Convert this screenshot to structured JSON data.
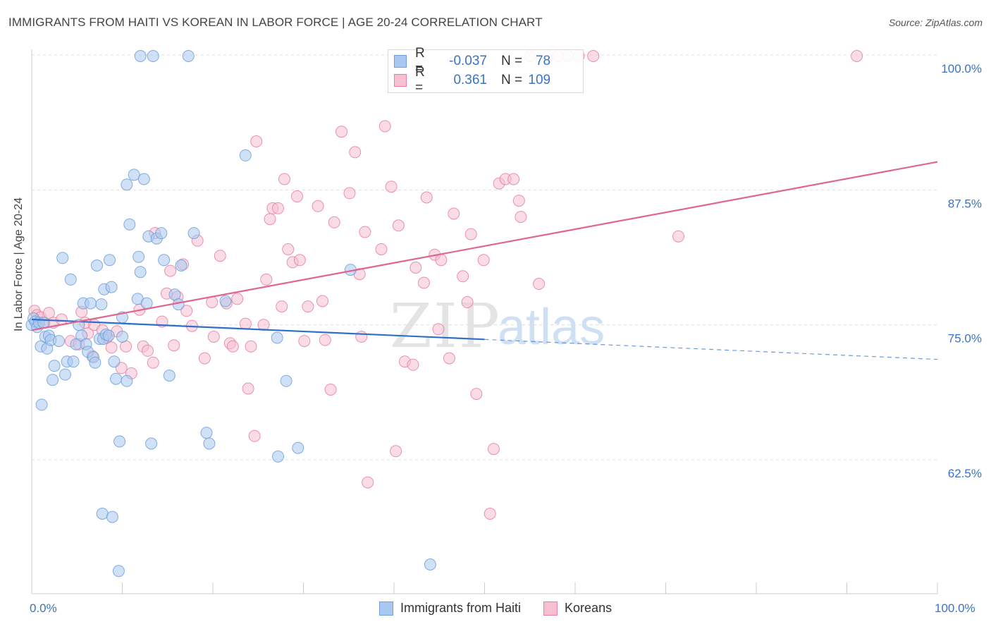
{
  "title": "IMMIGRANTS FROM HAITI VS KOREAN IN LABOR FORCE | AGE 20-24 CORRELATION CHART",
  "source": "Source: ZipAtlas.com",
  "watermark": {
    "zip": "ZIP",
    "atlas": "atlas"
  },
  "legend": [
    {
      "r_label": "R =",
      "r_value": "-0.037",
      "n_label": "N =",
      "n_value": "78"
    },
    {
      "r_label": "R =",
      "r_value": "0.361",
      "n_label": "N =",
      "n_value": "109"
    }
  ],
  "colors": {
    "haiti": "#6f9fdc",
    "haiti_fill": "#a9c8ef",
    "korean": "#e87fa3",
    "korean_fill": "#f6bfd2",
    "trend_haiti": "#2f6fcc",
    "trend_korean": "#e0668f",
    "tick_text": "#3b73c4"
  },
  "chart_data": {
    "type": "scatter",
    "title": "IMMIGRANTS FROM HAITI VS KOREAN IN LABOR FORCE | AGE 20-24 CORRELATION CHART",
    "xlabel": "",
    "ylabel": "In Labor Force | Age 20-24",
    "xlim": [
      0,
      100
    ],
    "ylim": [
      51.5,
      102
    ],
    "x_tick_labels": [
      "0.0%",
      "100.0%"
    ],
    "y_ticks": [
      62.5,
      75.0,
      87.5,
      100.0
    ],
    "y_tick_labels": [
      "62.5%",
      "75.0%",
      "87.5%",
      "100.0%"
    ],
    "grid": true,
    "series": [
      {
        "name": "Immigrants from Haiti",
        "color": "#6f9fdc",
        "trend": {
          "x": [
            0,
            100
          ],
          "y": [
            75.5,
            71.8
          ],
          "solid_until_x": 50
        },
        "points": [
          [
            0.0,
            75.0
          ],
          [
            0.2,
            75.6
          ],
          [
            0.4,
            75.3
          ],
          [
            0.6,
            74.8
          ],
          [
            0.8,
            75.2
          ],
          [
            1.0,
            73.0
          ],
          [
            1.1,
            67.6
          ],
          [
            1.3,
            75.2
          ],
          [
            1.5,
            73.9
          ],
          [
            1.7,
            72.8
          ],
          [
            1.9,
            74.0
          ],
          [
            2.1,
            73.6
          ],
          [
            2.3,
            69.9
          ],
          [
            2.5,
            71.2
          ],
          [
            3.0,
            73.5
          ],
          [
            3.4,
            81.2
          ],
          [
            3.7,
            70.4
          ],
          [
            3.9,
            71.6
          ],
          [
            4.3,
            79.2
          ],
          [
            4.6,
            71.6
          ],
          [
            4.9,
            73.2
          ],
          [
            5.2,
            75.0
          ],
          [
            5.5,
            74.0
          ],
          [
            5.7,
            77.0
          ],
          [
            6.0,
            73.2
          ],
          [
            6.2,
            72.5
          ],
          [
            6.5,
            77.0
          ],
          [
            6.8,
            72.0
          ],
          [
            7.0,
            71.5
          ],
          [
            7.2,
            80.5
          ],
          [
            7.5,
            73.7
          ],
          [
            7.7,
            76.9
          ],
          [
            7.8,
            57.5
          ],
          [
            7.9,
            73.7
          ],
          [
            8.0,
            78.3
          ],
          [
            8.2,
            74.1
          ],
          [
            8.5,
            74.0
          ],
          [
            8.6,
            81.0
          ],
          [
            8.8,
            78.5
          ],
          [
            8.9,
            57.2
          ],
          [
            9.1,
            71.6
          ],
          [
            9.3,
            70.0
          ],
          [
            9.6,
            52.2
          ],
          [
            9.7,
            64.2
          ],
          [
            10.0,
            73.9
          ],
          [
            10.0,
            75.7
          ],
          [
            10.5,
            69.8
          ],
          [
            10.5,
            88.0
          ],
          [
            10.8,
            84.3
          ],
          [
            11.3,
            88.9
          ],
          [
            11.7,
            77.4
          ],
          [
            11.8,
            81.3
          ],
          [
            12.0,
            79.9
          ],
          [
            12.0,
            99.9
          ],
          [
            12.4,
            88.5
          ],
          [
            12.7,
            77.0
          ],
          [
            12.9,
            83.2
          ],
          [
            13.2,
            64.0
          ],
          [
            13.4,
            99.9
          ],
          [
            13.8,
            83.0
          ],
          [
            14.3,
            83.5
          ],
          [
            14.6,
            81.0
          ],
          [
            15.2,
            70.3
          ],
          [
            15.8,
            77.8
          ],
          [
            16.2,
            76.9
          ],
          [
            16.5,
            80.5
          ],
          [
            17.3,
            99.9
          ],
          [
            17.9,
            83.5
          ],
          [
            19.3,
            65.0
          ],
          [
            19.6,
            64.0
          ],
          [
            21.4,
            77.2
          ],
          [
            23.6,
            90.7
          ],
          [
            27.1,
            73.8
          ],
          [
            27.2,
            62.8
          ],
          [
            28.1,
            69.8
          ],
          [
            29.4,
            63.6
          ],
          [
            35.2,
            80.1
          ],
          [
            44.0,
            52.8
          ]
        ]
      },
      {
        "name": "Koreans",
        "color": "#e87fa3",
        "trend": {
          "x": [
            0,
            100
          ],
          "y": [
            74.5,
            90.1
          ]
        },
        "points": [
          [
            0.3,
            76.3
          ],
          [
            0.6,
            75.9
          ],
          [
            1.0,
            75.7
          ],
          [
            1.4,
            75.2
          ],
          [
            1.9,
            76.1
          ],
          [
            2.4,
            75.2
          ],
          [
            3.3,
            75.5
          ],
          [
            4.3,
            73.5
          ],
          [
            5.2,
            73.2
          ],
          [
            5.5,
            76.2
          ],
          [
            5.9,
            75.2
          ],
          [
            6.2,
            74.2
          ],
          [
            6.7,
            72.1
          ],
          [
            6.9,
            75.0
          ],
          [
            7.8,
            74.5
          ],
          [
            8.3,
            73.8
          ],
          [
            8.8,
            72.9
          ],
          [
            9.4,
            74.4
          ],
          [
            9.9,
            71.0
          ],
          [
            10.4,
            73.0
          ],
          [
            11.0,
            70.5
          ],
          [
            11.9,
            76.4
          ],
          [
            12.3,
            73.0
          ],
          [
            12.8,
            72.6
          ],
          [
            13.4,
            71.5
          ],
          [
            13.6,
            83.5
          ],
          [
            14.4,
            75.3
          ],
          [
            14.9,
            77.9
          ],
          [
            15.3,
            80.0
          ],
          [
            15.7,
            73.1
          ],
          [
            16.1,
            77.6
          ],
          [
            16.7,
            80.6
          ],
          [
            17.1,
            76.3
          ],
          [
            17.7,
            74.9
          ],
          [
            18.3,
            82.8
          ],
          [
            19.1,
            71.9
          ],
          [
            19.9,
            77.1
          ],
          [
            20.1,
            73.9
          ],
          [
            20.8,
            81.4
          ],
          [
            21.5,
            77.0
          ],
          [
            21.9,
            73.3
          ],
          [
            22.2,
            73.0
          ],
          [
            22.7,
            77.4
          ],
          [
            23.6,
            75.1
          ],
          [
            23.9,
            69.1
          ],
          [
            24.2,
            73.0
          ],
          [
            24.6,
            64.7
          ],
          [
            24.8,
            92.0
          ],
          [
            25.6,
            75.0
          ],
          [
            25.9,
            79.2
          ],
          [
            26.3,
            84.8
          ],
          [
            26.6,
            85.8
          ],
          [
            27.2,
            85.8
          ],
          [
            27.6,
            76.7
          ],
          [
            27.9,
            88.5
          ],
          [
            28.3,
            82.0
          ],
          [
            28.8,
            80.8
          ],
          [
            29.3,
            86.9
          ],
          [
            29.6,
            81.0
          ],
          [
            30.1,
            73.5
          ],
          [
            30.5,
            76.7
          ],
          [
            31.6,
            86.0
          ],
          [
            32.1,
            77.2
          ],
          [
            32.4,
            73.6
          ],
          [
            33.0,
            69.0
          ],
          [
            33.4,
            84.5
          ],
          [
            34.2,
            92.9
          ],
          [
            35.1,
            87.2
          ],
          [
            35.7,
            91.0
          ],
          [
            36.2,
            79.7
          ],
          [
            36.4,
            73.9
          ],
          [
            36.8,
            83.6
          ],
          [
            37.1,
            60.4
          ],
          [
            38.6,
            82.0
          ],
          [
            39.0,
            93.4
          ],
          [
            39.7,
            87.8
          ],
          [
            40.2,
            63.3
          ],
          [
            40.5,
            84.2
          ],
          [
            41.2,
            71.6
          ],
          [
            42.1,
            71.3
          ],
          [
            42.4,
            80.3
          ],
          [
            43.3,
            78.9
          ],
          [
            43.6,
            86.8
          ],
          [
            44.5,
            81.5
          ],
          [
            44.9,
            74.6
          ],
          [
            45.2,
            81.0
          ],
          [
            46.1,
            71.9
          ],
          [
            46.6,
            85.3
          ],
          [
            47.6,
            79.5
          ],
          [
            48.1,
            77.1
          ],
          [
            48.5,
            83.4
          ],
          [
            49.1,
            68.6
          ],
          [
            49.9,
            81.0
          ],
          [
            50.6,
            57.5
          ],
          [
            51.0,
            63.5
          ],
          [
            51.6,
            88.1
          ],
          [
            52.3,
            88.5
          ],
          [
            53.2,
            88.5
          ],
          [
            53.8,
            86.5
          ],
          [
            54.0,
            85.0
          ],
          [
            55.0,
            99.9
          ],
          [
            56.0,
            78.8
          ],
          [
            57.0,
            99.9
          ],
          [
            58.1,
            99.9
          ],
          [
            59.2,
            99.9
          ],
          [
            60.4,
            99.9
          ],
          [
            62.0,
            99.9
          ],
          [
            71.4,
            83.2
          ],
          [
            91.1,
            99.9
          ]
        ]
      }
    ]
  },
  "bottom_legend": [
    "Immigrants from Haiti",
    "Koreans"
  ]
}
